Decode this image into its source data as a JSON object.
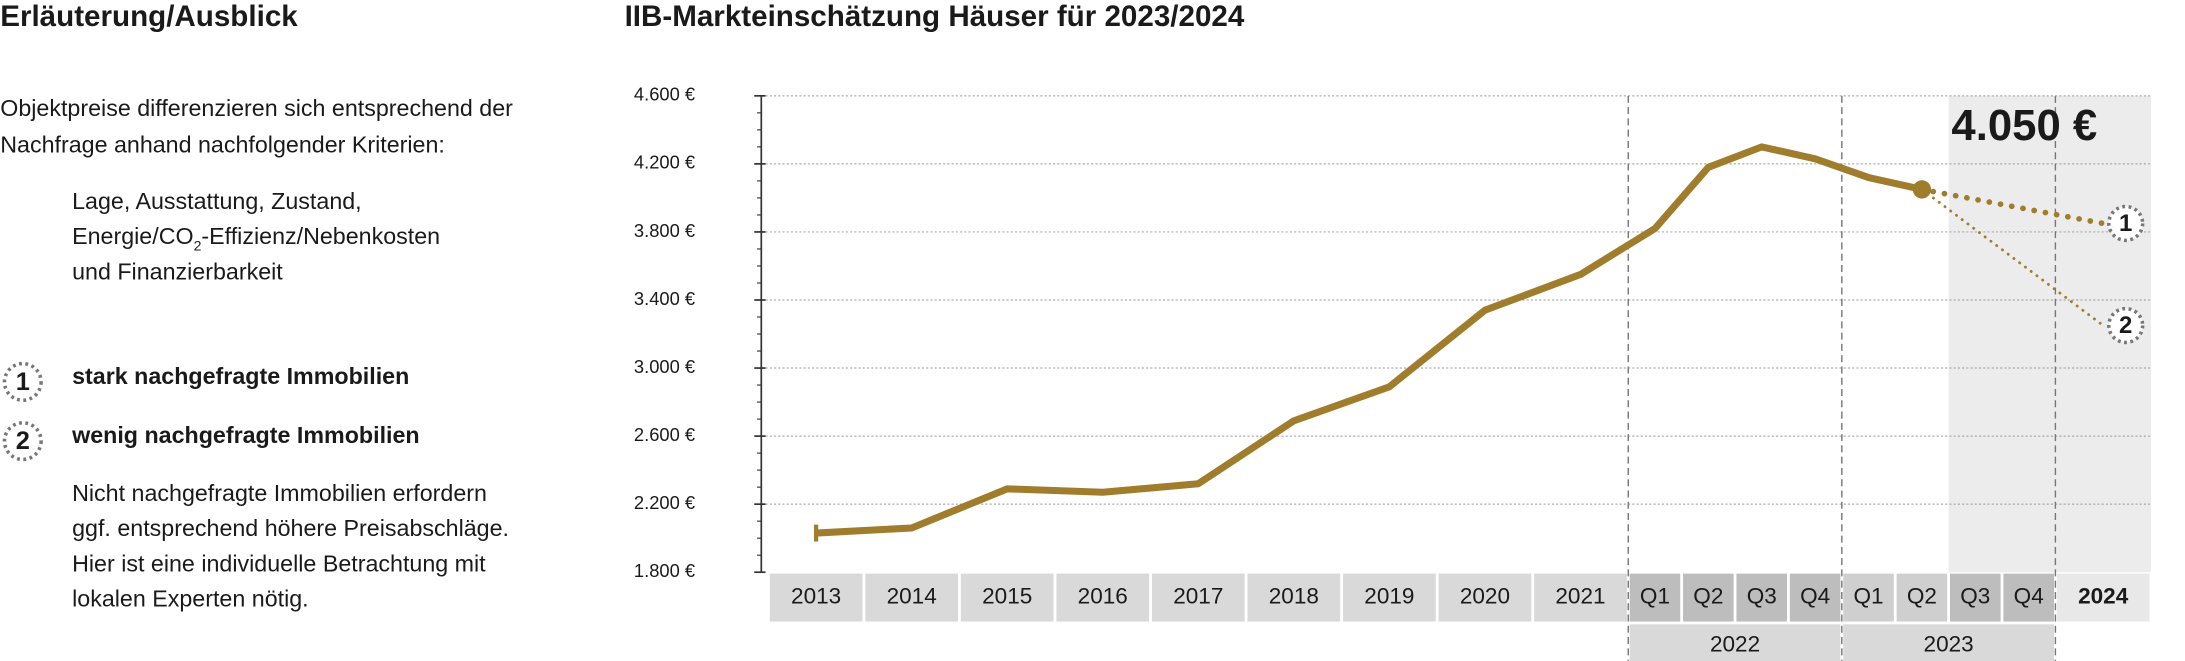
{
  "header": {
    "title": "Erläuterung/Ausblick"
  },
  "intro": [
    "Objektpreise differenzieren sich entsprechend der",
    "Nachfrage anhand nachfolgender Kriterien:"
  ],
  "criteria": [
    "Lage, Ausstattung, Zustand,",
    [
      "Energie/CO",
      "2",
      "-Effizienz/Nebenkosten"
    ],
    "und Finanzierbarkeit"
  ],
  "note": [
    "Nicht nachgefragte Immobilien erfordern",
    "ggf. entsprechend höhere Preisabschläge.",
    "Hier ist eine individuelle Betrachtung mit",
    "lokalen Experten nötig."
  ],
  "chart_data": {
    "type": "line",
    "title": "IIB-Markteinschätzung Häuser für 2023/2024",
    "categories": [
      "2013",
      "2014",
      "2015",
      "2016",
      "2017",
      "2018",
      "2019",
      "2020",
      "2021",
      "Q1",
      "Q2",
      "Q3",
      "Q4",
      "Q1",
      "Q2",
      "Q3",
      "Q4",
      "2024"
    ],
    "group_labels": [
      "2022",
      "2023"
    ],
    "series": [
      {
        "name": "Häuser",
        "color": "#a07d2c",
        "values": [
          2030,
          2060,
          2290,
          2270,
          2320,
          2690,
          2890,
          3340,
          3550,
          3820,
          4180,
          4300,
          4230,
          4120,
          4050,
          null,
          null,
          null
        ]
      }
    ],
    "scenarios": [
      {
        "label": "1",
        "name": "stark nachgefragte Immobilien",
        "value": 3850
      },
      {
        "label": "2",
        "name": "wenig nachgefragte Immobilien",
        "value": 3250
      }
    ],
    "annotation": "4.050 €",
    "ylim": [
      1800,
      4600
    ],
    "yticks": [
      {
        "value": 1800,
        "label": "1.800 €"
      },
      {
        "value": 2200,
        "label": "2.200 €"
      },
      {
        "value": 2600,
        "label": "2.600 €"
      },
      {
        "value": 3000,
        "label": "3.000 €"
      },
      {
        "value": 3400,
        "label": "3.400 €"
      },
      {
        "value": 3800,
        "label": "3.800 €"
      },
      {
        "value": 4200,
        "label": "4.200 €"
      },
      {
        "value": 4600,
        "label": "4.600 €"
      }
    ],
    "grid": true
  }
}
